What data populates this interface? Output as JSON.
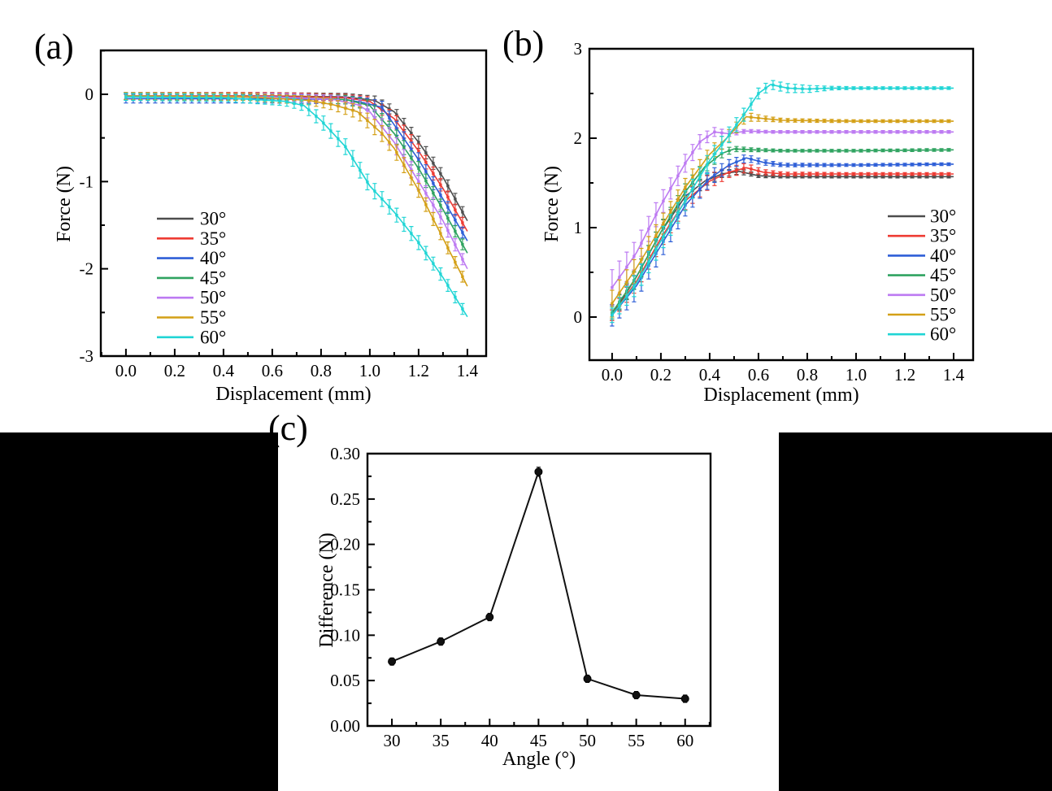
{
  "panel_labels": [
    {
      "id": "a",
      "label": "(a)"
    },
    {
      "id": "b",
      "label": "(b)"
    },
    {
      "id": "c",
      "label": "(c)"
    }
  ],
  "chart_data": [
    {
      "id": "a",
      "type": "line",
      "xlabel": "Displacement (mm)",
      "ylabel": "Force (N)",
      "xlim": [
        -0.103,
        1.477
      ],
      "ylim": [
        -3,
        0.503
      ],
      "xticks": {
        "values": [
          0,
          0.2,
          0.4,
          0.6,
          0.8,
          1.0,
          1.2,
          1.4
        ],
        "labels": [
          "0.0",
          "0.2",
          "0.4",
          "0.6",
          "0.8",
          "1.0",
          "1.2",
          "1.4"
        ]
      },
      "yticks": {
        "values": [
          0,
          -1,
          -2,
          -3
        ],
        "labels": [
          "0",
          "-1",
          "-2",
          "-3"
        ]
      },
      "x_minor_step": 0.1,
      "y_minor_step": 0.5,
      "grid": false,
      "marker": "square",
      "marker_step": 0.03,
      "errorbars": true,
      "legend_position": "inside-left",
      "series": [
        {
          "name": "30°",
          "color": "#4d4d4d",
          "points": [
            [
              0,
              -0.02,
              0.04
            ],
            [
              0.6,
              -0.02,
              0.04
            ],
            [
              0.9,
              -0.03,
              0.04
            ],
            [
              1.02,
              -0.07,
              0.05
            ],
            [
              1.1,
              -0.2,
              0.06
            ],
            [
              1.2,
              -0.55,
              0.07
            ],
            [
              1.3,
              -0.95,
              0.07
            ],
            [
              1.4,
              -1.45,
              0.06
            ]
          ]
        },
        {
          "name": "35°",
          "color": "#ee3b33",
          "points": [
            [
              0,
              -0.02,
              0.04
            ],
            [
              0.6,
              -0.02,
              0.04
            ],
            [
              0.9,
              -0.04,
              0.04
            ],
            [
              1.0,
              -0.08,
              0.05
            ],
            [
              1.1,
              -0.28,
              0.07
            ],
            [
              1.2,
              -0.65,
              0.08
            ],
            [
              1.3,
              -1.08,
              0.07
            ],
            [
              1.4,
              -1.57,
              0.06
            ]
          ]
        },
        {
          "name": "40°",
          "color": "#2e5fd7",
          "points": [
            [
              0,
              -0.05,
              0.05
            ],
            [
              0.6,
              -0.05,
              0.05
            ],
            [
              0.9,
              -0.06,
              0.05
            ],
            [
              0.98,
              -0.1,
              0.06
            ],
            [
              1.05,
              -0.15,
              0.07
            ],
            [
              1.1,
              -0.35,
              0.08
            ],
            [
              1.2,
              -0.75,
              0.08
            ],
            [
              1.3,
              -1.2,
              0.07
            ],
            [
              1.4,
              -1.68,
              0.06
            ]
          ]
        },
        {
          "name": "45°",
          "color": "#2fa360",
          "points": [
            [
              0,
              -0.02,
              0.04
            ],
            [
              0.6,
              -0.03,
              0.04
            ],
            [
              0.9,
              -0.06,
              0.05
            ],
            [
              1.0,
              -0.13,
              0.06
            ],
            [
              1.1,
              -0.45,
              0.08
            ],
            [
              1.2,
              -0.85,
              0.08
            ],
            [
              1.3,
              -1.32,
              0.07
            ],
            [
              1.4,
              -1.82,
              0.06
            ]
          ]
        },
        {
          "name": "50°",
          "color": "#bd7af2",
          "points": [
            [
              0,
              -0.02,
              0.04
            ],
            [
              0.6,
              -0.03,
              0.04
            ],
            [
              0.85,
              -0.06,
              0.05
            ],
            [
              0.95,
              -0.12,
              0.07
            ],
            [
              1.0,
              -0.2,
              0.09
            ],
            [
              1.1,
              -0.55,
              0.1
            ],
            [
              1.2,
              -1.0,
              0.09
            ],
            [
              1.3,
              -1.45,
              0.08
            ],
            [
              1.4,
              -2.0,
              0.06
            ]
          ]
        },
        {
          "name": "55°",
          "color": "#d4a017",
          "points": [
            [
              0,
              -0.02,
              0.04
            ],
            [
              0.5,
              -0.03,
              0.04
            ],
            [
              0.75,
              -0.07,
              0.05
            ],
            [
              0.85,
              -0.12,
              0.06
            ],
            [
              0.95,
              -0.2,
              0.08
            ],
            [
              1.05,
              -0.45,
              0.09
            ],
            [
              1.1,
              -0.62,
              0.09
            ],
            [
              1.2,
              -1.1,
              0.08
            ],
            [
              1.3,
              -1.65,
              0.07
            ],
            [
              1.4,
              -2.2,
              0.06
            ]
          ]
        },
        {
          "name": "60°",
          "color": "#20d5d5",
          "points": [
            [
              0,
              -0.03,
              0.04
            ],
            [
              0.4,
              -0.04,
              0.04
            ],
            [
              0.65,
              -0.08,
              0.05
            ],
            [
              0.73,
              -0.13,
              0.06
            ],
            [
              0.8,
              -0.3,
              0.08
            ],
            [
              0.9,
              -0.6,
              0.09
            ],
            [
              1.0,
              -1.05,
              0.09
            ],
            [
              1.1,
              -1.35,
              0.08
            ],
            [
              1.2,
              -1.7,
              0.08
            ],
            [
              1.3,
              -2.1,
              0.07
            ],
            [
              1.4,
              -2.55,
              0.06
            ]
          ]
        }
      ]
    },
    {
      "id": "b",
      "type": "line",
      "xlabel": "Displacement (mm)",
      "ylabel": "Force (N)",
      "xlim": [
        -0.093,
        1.48
      ],
      "ylim": [
        -0.482,
        3
      ],
      "xticks": {
        "values": [
          0,
          0.2,
          0.4,
          0.6,
          0.8,
          1.0,
          1.2,
          1.4
        ],
        "labels": [
          "0.0",
          "0.2",
          "0.4",
          "0.6",
          "0.8",
          "1.0",
          "1.2",
          "1.4"
        ]
      },
      "yticks": {
        "values": [
          0,
          1,
          2,
          3
        ],
        "labels": [
          "0",
          "1",
          "2",
          "3"
        ]
      },
      "x_minor_step": 0.1,
      "y_minor_step": 0.5,
      "grid": false,
      "marker": "square",
      "marker_step": 0.03,
      "errorbars": true,
      "legend_position": "inside-right",
      "series": [
        {
          "name": "30°",
          "color": "#4d4d4d",
          "points": [
            [
              0,
              0.02,
              0.06
            ],
            [
              0.1,
              0.45,
              0.1
            ],
            [
              0.2,
              0.95,
              0.1
            ],
            [
              0.3,
              1.35,
              0.08
            ],
            [
              0.38,
              1.52,
              0.06
            ],
            [
              0.45,
              1.6,
              0.04
            ],
            [
              0.52,
              1.63,
              0.03
            ],
            [
              0.6,
              1.58,
              0.02
            ],
            [
              0.7,
              1.57,
              0.015
            ],
            [
              1.0,
              1.57,
              0.015
            ],
            [
              1.4,
              1.57,
              0.015
            ]
          ]
        },
        {
          "name": "35°",
          "color": "#ee3b33",
          "points": [
            [
              0,
              0.02,
              0.06
            ],
            [
              0.1,
              0.4,
              0.1
            ],
            [
              0.2,
              0.88,
              0.11
            ],
            [
              0.3,
              1.3,
              0.1
            ],
            [
              0.4,
              1.52,
              0.08
            ],
            [
              0.48,
              1.62,
              0.06
            ],
            [
              0.55,
              1.67,
              0.05
            ],
            [
              0.62,
              1.62,
              0.03
            ],
            [
              0.7,
              1.6,
              0.02
            ],
            [
              1.0,
              1.6,
              0.015
            ],
            [
              1.4,
              1.6,
              0.015
            ]
          ]
        },
        {
          "name": "40°",
          "color": "#2e5fd7",
          "points": [
            [
              0,
              0.02,
              0.12
            ],
            [
              0.1,
              0.35,
              0.15
            ],
            [
              0.2,
              0.8,
              0.15
            ],
            [
              0.3,
              1.25,
              0.12
            ],
            [
              0.4,
              1.55,
              0.09
            ],
            [
              0.48,
              1.7,
              0.06
            ],
            [
              0.55,
              1.78,
              0.04
            ],
            [
              0.62,
              1.73,
              0.03
            ],
            [
              0.7,
              1.7,
              0.02
            ],
            [
              1.0,
              1.7,
              0.015
            ],
            [
              1.4,
              1.71,
              0.015
            ]
          ]
        },
        {
          "name": "45°",
          "color": "#2fa360",
          "points": [
            [
              0,
              0.05,
              0.07
            ],
            [
              0.1,
              0.45,
              0.1
            ],
            [
              0.2,
              0.95,
              0.1
            ],
            [
              0.3,
              1.4,
              0.09
            ],
            [
              0.38,
              1.68,
              0.07
            ],
            [
              0.45,
              1.83,
              0.05
            ],
            [
              0.5,
              1.88,
              0.03
            ],
            [
              0.58,
              1.87,
              0.02
            ],
            [
              0.7,
              1.86,
              0.015
            ],
            [
              1.0,
              1.86,
              0.015
            ],
            [
              1.4,
              1.87,
              0.015
            ]
          ]
        },
        {
          "name": "50°",
          "color": "#bd7af2",
          "points": [
            [
              0,
              0.33,
              0.2
            ],
            [
              0.05,
              0.52,
              0.17
            ],
            [
              0.1,
              0.72,
              0.15
            ],
            [
              0.2,
              1.25,
              0.13
            ],
            [
              0.3,
              1.72,
              0.1
            ],
            [
              0.36,
              1.96,
              0.08
            ],
            [
              0.42,
              2.07,
              0.05
            ],
            [
              0.48,
              2.05,
              0.03
            ],
            [
              0.55,
              2.08,
              0.02
            ],
            [
              0.65,
              2.07,
              0.015
            ],
            [
              1.0,
              2.07,
              0.015
            ],
            [
              1.4,
              2.07,
              0.015
            ]
          ]
        },
        {
          "name": "55°",
          "color": "#d4a017",
          "points": [
            [
              0,
              0.15,
              0.15
            ],
            [
              0.1,
              0.55,
              0.13
            ],
            [
              0.2,
              1.0,
              0.12
            ],
            [
              0.3,
              1.45,
              0.1
            ],
            [
              0.4,
              1.82,
              0.08
            ],
            [
              0.47,
              2.0,
              0.07
            ],
            [
              0.55,
              2.24,
              0.05
            ],
            [
              0.62,
              2.22,
              0.03
            ],
            [
              0.7,
              2.2,
              0.02
            ],
            [
              1.0,
              2.19,
              0.015
            ],
            [
              1.4,
              2.19,
              0.015
            ]
          ]
        },
        {
          "name": "60°",
          "color": "#20d5d5",
          "points": [
            [
              0,
              0.02,
              0.08
            ],
            [
              0.1,
              0.38,
              0.12
            ],
            [
              0.2,
              0.85,
              0.12
            ],
            [
              0.3,
              1.3,
              0.11
            ],
            [
              0.4,
              1.75,
              0.1
            ],
            [
              0.47,
              2.0,
              0.09
            ],
            [
              0.55,
              2.3,
              0.07
            ],
            [
              0.6,
              2.5,
              0.06
            ],
            [
              0.65,
              2.6,
              0.05
            ],
            [
              0.72,
              2.56,
              0.05
            ],
            [
              0.8,
              2.55,
              0.04
            ],
            [
              0.9,
              2.56,
              0.02
            ],
            [
              1.0,
              2.56,
              0.015
            ],
            [
              1.4,
              2.56,
              0.015
            ]
          ]
        }
      ]
    },
    {
      "id": "c",
      "type": "line",
      "xlabel": "Angle (°)",
      "ylabel": "Difference (N)",
      "xlim": [
        27.5,
        62.6
      ],
      "ylim": [
        0,
        0.3
      ],
      "xticks": {
        "values": [
          30,
          35,
          40,
          45,
          50,
          55,
          60
        ],
        "labels": [
          "30",
          "35",
          "40",
          "45",
          "50",
          "55",
          "60"
        ]
      },
      "yticks": {
        "values": [
          0,
          0.05,
          0.1,
          0.15,
          0.2,
          0.25,
          0.3
        ],
        "labels": [
          "0.00",
          "0.05",
          "0.10",
          "0.15",
          "0.20",
          "0.25",
          "0.30"
        ]
      },
      "x_minor_step": 2.5,
      "y_minor_step": 0.025,
      "grid": false,
      "marker": "circle",
      "marker_step": null,
      "errorbars": true,
      "legend_position": null,
      "series": [
        {
          "name": "Difference",
          "color": "#111111",
          "points": [
            [
              30,
              0.071,
              0.004
            ],
            [
              35,
              0.093,
              0.004
            ],
            [
              40,
              0.12,
              0.004
            ],
            [
              45,
              0.28,
              0.005
            ],
            [
              50,
              0.052,
              0.004
            ],
            [
              55,
              0.034,
              0.004
            ],
            [
              60,
              0.03,
              0.004
            ]
          ]
        }
      ]
    }
  ]
}
